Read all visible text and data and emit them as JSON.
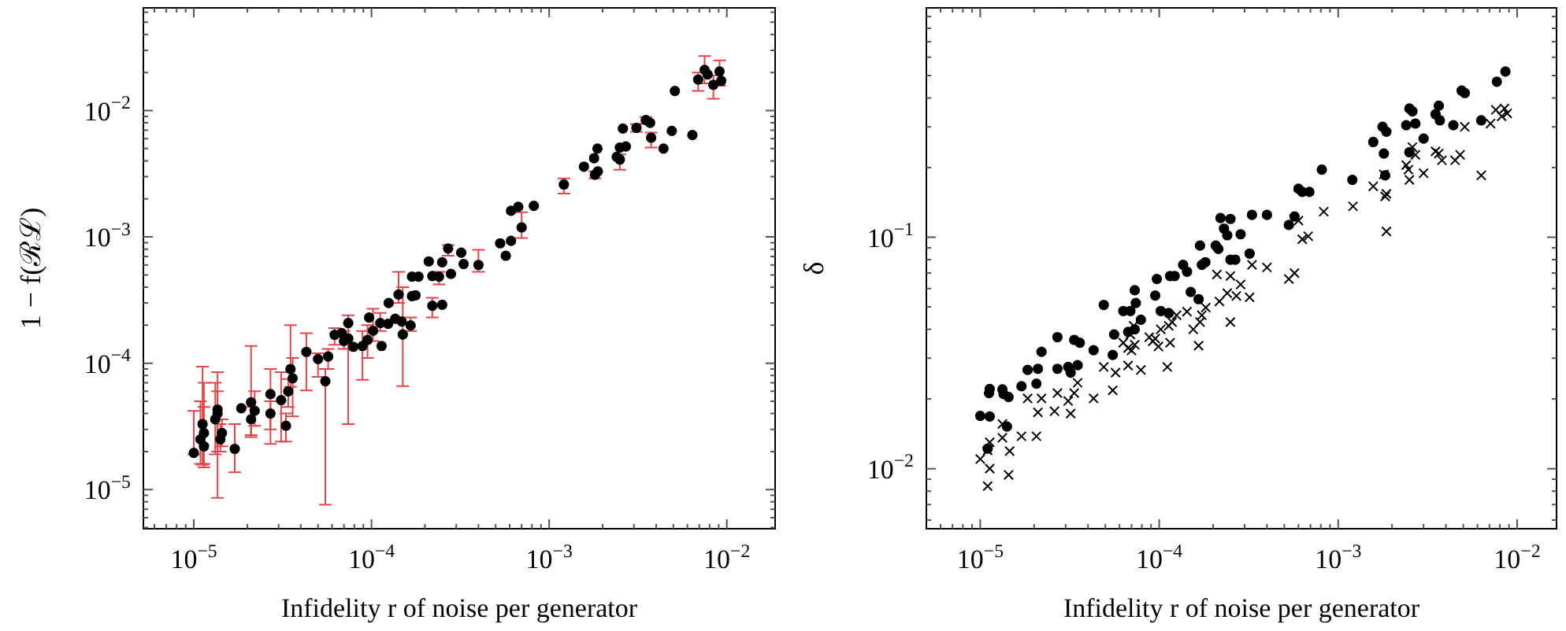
{
  "chart_data": [
    {
      "type": "scatter",
      "xlabel": "Infidelity r of noise per generator",
      "ylabel": "1 − f(ℛℒ)",
      "log": "xy",
      "marker": "circle",
      "color": "#000000",
      "xlim": [
        5.2e-06,
        0.0187
      ],
      "ylim": [
        4.9e-06,
        0.065
      ],
      "xticks": [
        {
          "value": 6e-06,
          "label": null
        },
        {
          "value": 7e-06,
          "label": null
        },
        {
          "value": 8e-06,
          "label": null
        },
        {
          "value": 9e-06,
          "label": null
        },
        {
          "value": 1e-05,
          "label": "10$^{−5}$"
        },
        {
          "value": 2e-05,
          "label": null
        },
        {
          "value": 3e-05,
          "label": null
        },
        {
          "value": 4e-05,
          "label": null
        },
        {
          "value": 5e-05,
          "label": null
        },
        {
          "value": 6e-05,
          "label": null
        },
        {
          "value": 7e-05,
          "label": null
        },
        {
          "value": 8e-05,
          "label": null
        },
        {
          "value": 9e-05,
          "label": null
        },
        {
          "value": 0.0001,
          "label": "10$^{−4}$"
        },
        {
          "value": 0.0002,
          "label": null
        },
        {
          "value": 0.0003,
          "label": null
        },
        {
          "value": 0.0004,
          "label": null
        },
        {
          "value": 0.0005,
          "label": null
        },
        {
          "value": 0.0006,
          "label": null
        },
        {
          "value": 0.0007,
          "label": null
        },
        {
          "value": 0.0008,
          "label": null
        },
        {
          "value": 0.0009,
          "label": null
        },
        {
          "value": 0.001,
          "label": "10$^{−3}$"
        },
        {
          "value": 0.002,
          "label": null
        },
        {
          "value": 0.003,
          "label": null
        },
        {
          "value": 0.004,
          "label": null
        },
        {
          "value": 0.005,
          "label": null
        },
        {
          "value": 0.006,
          "label": null
        },
        {
          "value": 0.007,
          "label": null
        },
        {
          "value": 0.008,
          "label": null
        },
        {
          "value": 0.009,
          "label": null
        },
        {
          "value": 0.01,
          "label": "10$^{−2}$"
        }
      ],
      "yticks": [
        {
          "value": 5e-06,
          "label": null
        },
        {
          "value": 6e-06,
          "label": null
        },
        {
          "value": 7e-06,
          "label": null
        },
        {
          "value": 8e-06,
          "label": null
        },
        {
          "value": 9e-06,
          "label": null
        },
        {
          "value": 1e-05,
          "label": "10$^{−5}$"
        },
        {
          "value": 2e-05,
          "label": null
        },
        {
          "value": 3e-05,
          "label": null
        },
        {
          "value": 4e-05,
          "label": null
        },
        {
          "value": 5e-05,
          "label": null
        },
        {
          "value": 6e-05,
          "label": null
        },
        {
          "value": 7e-05,
          "label": null
        },
        {
          "value": 8e-05,
          "label": null
        },
        {
          "value": 9e-05,
          "label": null
        },
        {
          "value": 0.0001,
          "label": "10$^{−4}$"
        },
        {
          "value": 0.0002,
          "label": null
        },
        {
          "value": 0.0003,
          "label": null
        },
        {
          "value": 0.0004,
          "label": null
        },
        {
          "value": 0.0005,
          "label": null
        },
        {
          "value": 0.0006,
          "label": null
        },
        {
          "value": 0.0007,
          "label": null
        },
        {
          "value": 0.0008,
          "label": null
        },
        {
          "value": 0.0009,
          "label": null
        },
        {
          "value": 0.001,
          "label": "10$^{−3}$"
        },
        {
          "value": 0.002,
          "label": null
        },
        {
          "value": 0.003,
          "label": null
        },
        {
          "value": 0.004,
          "label": null
        },
        {
          "value": 0.005,
          "label": null
        },
        {
          "value": 0.006,
          "label": null
        },
        {
          "value": 0.007,
          "label": null
        },
        {
          "value": 0.008,
          "label": null
        },
        {
          "value": 0.009,
          "label": null
        },
        {
          "value": 0.01,
          "label": "10$^{−2}$"
        },
        {
          "value": 0.02,
          "label": null
        },
        {
          "value": 0.03,
          "label": null
        },
        {
          "value": 0.04,
          "label": null
        },
        {
          "value": 0.05,
          "label": null
        },
        {
          "value": 0.06,
          "label": null
        }
      ],
      "x": [
        0.0069,
        0.0075,
        0.0078,
        0.0084,
        0.0091,
        0.0093,
        0.0051,
        0.0064,
        0.0026,
        0.0031,
        0.0035,
        0.0037,
        0.00375,
        0.0049,
        0.0044,
        0.00187,
        0.00179,
        0.00157,
        0.00181,
        0.00188,
        0.0024,
        0.0025,
        0.0027,
        0.0025,
        0.00121,
        0.00061,
        0.00067,
        0.00082,
        0.0007,
        0.00053,
        0.00061,
        0.00057,
        0.0004,
        0.00032,
        0.00033,
        0.00027,
        0.00025,
        0.00028,
        0.00021,
        0.00022,
        0.00024,
        0.000169,
        0.000184,
        0.000142,
        0.000169,
        0.000177,
        0.000125,
        0.00022,
        0.00025,
        9.7e-05,
        0.000136,
        0.000148,
        0.000166,
        0.00015,
        0.000124,
        0.000112,
        0.000102,
        0.000114,
        9.5e-05,
        8.9e-05,
        7.9e-05,
        7.4e-05,
        7e-05,
        7.4e-05,
        6.8e-05,
        6.2e-05,
        5.7e-05,
        5.5e-05,
        5e-05,
        4.3e-05,
        3.5e-05,
        3.6e-05,
        3.4e-05,
        3.1e-05,
        3.3e-05,
        2.7e-05,
        2.7e-05,
        2.2e-05,
        2.1e-05,
        2.1e-05,
        1.85e-05,
        1.7e-05,
        1.44e-05,
        1.41e-05,
        1.36e-05,
        1.36e-05,
        1.32e-05,
        1.12e-05,
        1.14e-05,
        1.09e-05,
        1.14e-05,
        1e-05
      ],
      "values": [
        0.0176,
        0.021,
        0.0193,
        0.016,
        0.0204,
        0.0172,
        0.0143,
        0.0064,
        0.0072,
        0.0073,
        0.0084,
        0.008,
        0.0061,
        0.0069,
        0.005,
        0.005,
        0.0042,
        0.0036,
        0.0031,
        0.0033,
        0.0043,
        0.0051,
        0.0052,
        0.0041,
        0.0026,
        0.00161,
        0.00173,
        0.00176,
        0.00119,
        0.00089,
        0.00093,
        0.00071,
        0.0006,
        0.00075,
        0.00061,
        0.00081,
        0.00063,
        0.00051,
        0.00064,
        0.00049,
        0.000485,
        0.000485,
        0.000485,
        0.00035,
        0.00034,
        0.000345,
        0.0003,
        0.000285,
        0.00029,
        0.00023,
        0.000225,
        0.000214,
        0.000199,
        0.000169,
        0.000205,
        0.000208,
        0.000181,
        0.000137,
        0.000153,
        0.000137,
        0.000135,
        0.000208,
        0.00015,
        0.000157,
        0.000173,
        0.000168,
        0.000113,
        7.2e-05,
        0.000108,
        0.000123,
        9e-05,
        7.6e-05,
        6e-05,
        5.1e-05,
        3.2e-05,
        5.7e-05,
        4e-05,
        4.2e-05,
        4.9e-05,
        3.6e-05,
        4.4e-05,
        2.1e-05,
        2.8e-05,
        2.5e-05,
        4.3e-05,
        4e-05,
        3.6e-05,
        3.3e-05,
        2.8e-05,
        2.5e-05,
        2.2e-05,
        1.95e-05
      ],
      "errors": [
        [
          0.0143,
          0.02
        ],
        [
          0.0164,
          0.027
        ],
        null,
        [
          0.0124,
          0.019
        ],
        [
          0.0157,
          0.025
        ],
        null,
        null,
        null,
        null,
        [
          0.0068,
          0.0078
        ],
        [
          0.0079,
          0.0089
        ],
        null,
        [
          0.0051,
          0.0067
        ],
        null,
        null,
        null,
        null,
        null,
        [
          0.0029,
          0.0033
        ],
        null,
        null,
        null,
        null,
        [
          0.0034,
          0.0045
        ],
        [
          0.0022,
          0.0029
        ],
        null,
        null,
        null,
        [
          0.00098,
          0.00157
        ],
        null,
        null,
        null,
        [
          0.00053,
          0.00079
        ],
        null,
        null,
        [
          0.00071,
          0.00086
        ],
        null,
        null,
        null,
        null,
        [
          0.00042,
          0.00053
        ],
        null,
        null,
        [
          0.0003,
          0.00053
        ],
        null,
        null,
        null,
        [
          0.00023,
          0.00033
        ],
        null,
        null,
        null,
        null,
        [
          0.00018,
          0.00023
        ],
        [
          6.6e-05,
          0.0004
        ],
        null,
        [
          0.00018,
          0.00025
        ],
        [
          0.00015,
          0.00027
        ],
        null,
        [
          0.00011,
          0.0002
        ],
        [
          7.4e-05,
          0.00018
        ],
        null,
        null,
        [
          0.00013,
          0.00018
        ],
        [
          3.3e-05,
          0.00024
        ],
        null,
        [
          0.00014,
          0.00019
        ],
        [
          9e-05,
          0.00013
        ],
        [
          7.6e-06,
          9e-05
        ],
        [
          7.8e-05,
          0.00012
        ],
        [
          6.1e-05,
          0.000173
        ],
        [
          6.5e-05,
          0.0002
        ],
        [
          3.8e-05,
          0.00011
        ],
        [
          4.5e-05,
          7.5e-05
        ],
        [
          2.4e-05,
          8.5e-05
        ],
        [
          2.4e-05,
          4e-05
        ],
        [
          2.3e-05,
          9e-05
        ],
        [
          3e-05,
          5e-05
        ],
        [
          3.2e-05,
          6e-05
        ],
        [
          2.6e-05,
          0.000137
        ],
        [
          2.7e-05,
          4.5e-05
        ],
        null,
        [
          1.37e-05,
          3.3e-05
        ],
        [
          2.2e-05,
          3.6e-05
        ],
        [
          2e-05,
          3.3e-05
        ],
        [
          8.6e-06,
          8.5e-05
        ],
        [
          2e-05,
          6e-05
        ],
        [
          1.9e-05,
          7e-05
        ],
        [
          1.57e-05,
          9.4e-05
        ],
        [
          1.6e-05,
          7e-05
        ],
        [
          1.6e-05,
          5e-05
        ],
        [
          1.5e-05,
          4.5e-05
        ],
        [
          1.9e-05,
          4.2e-05
        ]
      ]
    },
    {
      "type": "scatter",
      "xlabel": "Infidelity r of noise per generator",
      "ylabel": "δ",
      "log": "xy",
      "xlim": [
        5e-06,
        0.0166
      ],
      "ylim": [
        0.0055,
        0.98
      ],
      "xticks": [
        {
          "value": 6e-06,
          "label": null
        },
        {
          "value": 7e-06,
          "label": null
        },
        {
          "value": 8e-06,
          "label": null
        },
        {
          "value": 9e-06,
          "label": null
        },
        {
          "value": 1e-05,
          "label": "10$^{−5}$"
        },
        {
          "value": 2e-05,
          "label": null
        },
        {
          "value": 3e-05,
          "label": null
        },
        {
          "value": 4e-05,
          "label": null
        },
        {
          "value": 5e-05,
          "label": null
        },
        {
          "value": 6e-05,
          "label": null
        },
        {
          "value": 7e-05,
          "label": null
        },
        {
          "value": 8e-05,
          "label": null
        },
        {
          "value": 9e-05,
          "label": null
        },
        {
          "value": 0.0001,
          "label": "10$^{−4}$"
        },
        {
          "value": 0.0002,
          "label": null
        },
        {
          "value": 0.0003,
          "label": null
        },
        {
          "value": 0.0004,
          "label": null
        },
        {
          "value": 0.0005,
          "label": null
        },
        {
          "value": 0.0006,
          "label": null
        },
        {
          "value": 0.0007,
          "label": null
        },
        {
          "value": 0.0008,
          "label": null
        },
        {
          "value": 0.0009,
          "label": null
        },
        {
          "value": 0.001,
          "label": "10$^{−3}$"
        },
        {
          "value": 0.002,
          "label": null
        },
        {
          "value": 0.003,
          "label": null
        },
        {
          "value": 0.004,
          "label": null
        },
        {
          "value": 0.005,
          "label": null
        },
        {
          "value": 0.006,
          "label": null
        },
        {
          "value": 0.007,
          "label": null
        },
        {
          "value": 0.008,
          "label": null
        },
        {
          "value": 0.009,
          "label": null
        },
        {
          "value": 0.01,
          "label": "10$^{−2}$"
        }
      ],
      "yticks": [
        {
          "value": 0.006,
          "label": null
        },
        {
          "value": 0.007,
          "label": null
        },
        {
          "value": 0.008,
          "label": null
        },
        {
          "value": 0.009,
          "label": null
        },
        {
          "value": 0.01,
          "label": "10$^{−2}$"
        },
        {
          "value": 0.02,
          "label": null
        },
        {
          "value": 0.03,
          "label": null
        },
        {
          "value": 0.04,
          "label": null
        },
        {
          "value": 0.05,
          "label": null
        },
        {
          "value": 0.06,
          "label": null
        },
        {
          "value": 0.07,
          "label": null
        },
        {
          "value": 0.08,
          "label": null
        },
        {
          "value": 0.09,
          "label": null
        },
        {
          "value": 0.1,
          "label": "10$^{−1}$"
        },
        {
          "value": 0.2,
          "label": null
        },
        {
          "value": 0.3,
          "label": null
        },
        {
          "value": 0.4,
          "label": null
        },
        {
          "value": 0.5,
          "label": null
        },
        {
          "value": 0.6,
          "label": null
        },
        {
          "value": 0.7,
          "label": null
        },
        {
          "value": 0.8,
          "label": null
        },
        {
          "value": 0.9,
          "label": null
        }
      ],
      "series": [
        {
          "color": "#000000",
          "marker": "circle",
          "x": [
            0.0086,
            0.0077,
            0.0049,
            0.0051,
            0.0025,
            0.0026,
            0.00365,
            0.0035,
            0.0037,
            0.0044,
            0.0063,
            0.0024,
            0.0027,
            0.00177,
            0.00186,
            0.00157,
            0.003,
            0.0018,
            0.0025,
            0.00183,
            0.00081,
            0.0012,
            0.0006,
            0.00063,
            0.00069,
            0.00057,
            0.00053,
            0.00033,
            0.0004,
            0.00022,
            0.00025,
            0.00023,
            0.00024,
            0.000285,
            0.000169,
            0.000207,
            0.000214,
            0.00025,
            0.000266,
            0.00032,
            0.000136,
            0.000143,
            0.000173,
            0.000181,
            0.000115,
            0.000122,
            9.7e-05,
            7.3e-05,
            9.5e-05,
            0.00015,
            0.000166,
            4.9e-05,
            6.3e-05,
            6.9e-05,
            7.4e-05,
            0.000102,
            0.000113,
            7.9e-05,
            5.6e-05,
            6.7e-05,
            7.3e-05,
            2.7e-05,
            2.2e-05,
            3.35e-05,
            3.6e-05,
            4.3e-05,
            5.5e-05,
            1.84e-05,
            2.1e-05,
            2.7e-05,
            3.1e-05,
            3.2e-05,
            3.5e-05,
            1.7e-05,
            2.06e-05,
            1.13e-05,
            1.12e-05,
            1.33e-05,
            1.35e-05,
            1.44e-05,
            1e-05,
            1.13e-05,
            1.41e-05,
            1.1e-05
          ],
          "values": [
            0.52,
            0.47,
            0.43,
            0.42,
            0.36,
            0.35,
            0.37,
            0.34,
            0.32,
            0.305,
            0.32,
            0.305,
            0.31,
            0.3,
            0.286,
            0.258,
            0.267,
            0.23,
            0.233,
            0.185,
            0.196,
            0.177,
            0.162,
            0.157,
            0.157,
            0.123,
            0.113,
            0.125,
            0.125,
            0.121,
            0.12,
            0.109,
            0.102,
            0.103,
            0.092,
            0.092,
            0.089,
            0.08,
            0.08,
            0.085,
            0.076,
            0.071,
            0.076,
            0.078,
            0.068,
            0.068,
            0.066,
            0.059,
            0.056,
            0.058,
            0.054,
            0.051,
            0.048,
            0.048,
            0.052,
            0.048,
            0.047,
            0.044,
            0.038,
            0.039,
            0.04,
            0.037,
            0.032,
            0.036,
            0.035,
            0.0325,
            0.031,
            0.0267,
            0.027,
            0.027,
            0.0275,
            0.026,
            0.028,
            0.0227,
            0.0233,
            0.0221,
            0.0212,
            0.022,
            0.021,
            0.0204,
            0.0169,
            0.0168,
            0.0152,
            0.0122
          ]
        },
        {
          "color": "#000000",
          "marker": "cross",
          "x": [
            0.0076,
            0.0085,
            0.0088,
            0.0082,
            0.0071,
            0.0051,
            0.0026,
            0.0027,
            0.0024,
            0.00247,
            0.003,
            0.0025,
            0.0035,
            0.00365,
            0.0038,
            0.0045,
            0.0048,
            0.0063,
            0.00157,
            0.0018,
            0.00186,
            0.00183,
            0.00186,
            0.00121,
            0.00083,
            0.0006,
            0.00063,
            0.00068,
            0.00057,
            0.00053,
            0.0004,
            0.00033,
            0.00021,
            0.00025,
            0.000285,
            0.000182,
            0.000173,
            0.000169,
            0.000155,
            0.000143,
            0.000125,
            0.000118,
            0.000113,
            0.000102,
            9.5e-05,
            9.9e-05,
            0.000115,
            8.8e-05,
            9.2e-05,
            7.2e-05,
            6.9e-05,
            7.3e-05,
            7e-05,
            6.7e-05,
            6.3e-05,
            5.7e-05,
            4.9e-05,
            6.7e-05,
            7.9e-05,
            0.000111,
            0.000166,
            0.00025,
            0.000217,
            0.00024,
            0.00027,
            0.00032,
            5.5e-05,
            4.3e-05,
            3.5e-05,
            3.35e-05,
            3.1e-05,
            3.2e-05,
            2.7e-05,
            2.6e-05,
            2.2e-05,
            2.1e-05,
            1.84e-05,
            2.06e-05,
            1.7e-05,
            1.33e-05,
            1.33e-05,
            1.46e-05,
            1.44e-05,
            1.13e-05,
            1.1e-05,
            1e-05,
            1.13e-05,
            1.1e-05
          ],
          "values": [
            0.355,
            0.36,
            0.343,
            0.333,
            0.31,
            0.3,
            0.245,
            0.227,
            0.205,
            0.196,
            0.189,
            0.177,
            0.235,
            0.23,
            0.215,
            0.215,
            0.227,
            0.185,
            0.166,
            0.187,
            0.154,
            0.15,
            0.106,
            0.136,
            0.129,
            0.118,
            0.098,
            0.101,
            0.07,
            0.066,
            0.074,
            0.076,
            0.069,
            0.068,
            0.0625,
            0.0497,
            0.046,
            0.043,
            0.04,
            0.0477,
            0.046,
            0.043,
            0.0414,
            0.04,
            0.0365,
            0.0337,
            0.035,
            0.037,
            0.0355,
            0.0414,
            0.038,
            0.0343,
            0.0324,
            0.0332,
            0.035,
            0.026,
            0.0275,
            0.0279,
            0.0267,
            0.0275,
            0.034,
            0.043,
            0.0528,
            0.0573,
            0.0558,
            0.055,
            0.0218,
            0.0201,
            0.0235,
            0.0212,
            0.0196,
            0.0173,
            0.0212,
            0.0177,
            0.0201,
            0.0175,
            0.0201,
            0.0138,
            0.0138,
            0.0156,
            0.0136,
            0.0119,
            0.0094,
            0.013,
            0.012,
            0.011,
            0.01,
            0.0084
          ]
        }
      ]
    }
  ]
}
